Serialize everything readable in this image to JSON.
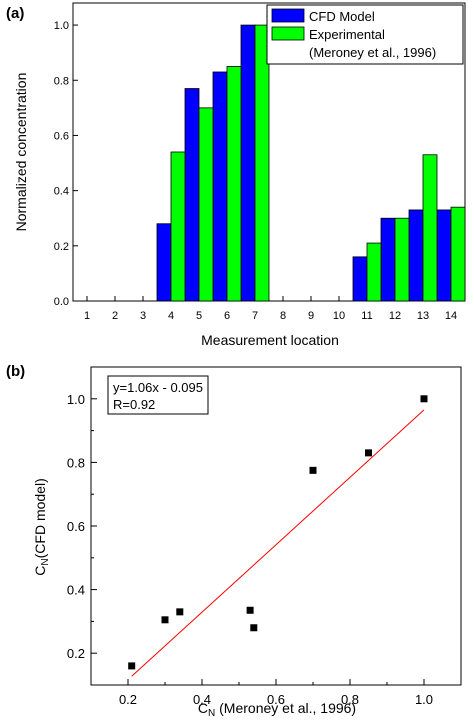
{
  "chart_data": [
    {
      "type": "bar",
      "panel_label": "(a)",
      "xlabel": "Measurement  location",
      "ylabel": "Normalized  concentration",
      "ylim": [
        0,
        1.08
      ],
      "yticks": [
        "0.0",
        "0.2",
        "0.4",
        "0.6",
        "0.8",
        "1.0"
      ],
      "categories": [
        "1",
        "2",
        "3",
        "4",
        "5",
        "6",
        "7",
        "8",
        "9",
        "10",
        "11",
        "12",
        "13",
        "14"
      ],
      "series": [
        {
          "name": "CFD Model",
          "color": "#0000ff",
          "values": [
            null,
            null,
            null,
            0.28,
            0.77,
            0.83,
            1.0,
            null,
            null,
            null,
            0.16,
            0.3,
            0.33,
            0.33
          ]
        },
        {
          "name": "Experimental",
          "color": "#00ff00",
          "values": [
            null,
            null,
            null,
            0.54,
            0.7,
            0.85,
            1.0,
            null,
            null,
            null,
            0.21,
            0.3,
            0.53,
            0.34
          ]
        }
      ],
      "legend_note": "(Meroney et al., 1996)",
      "legend_position": "top-right"
    },
    {
      "type": "scatter",
      "panel_label": "(b)",
      "xlabel_main": "C",
      "xlabel_sub": "N",
      "xlabel_rest": " (Meroney et al., 1996)",
      "ylabel_main": "C",
      "ylabel_sub": "N",
      "ylabel_rest": "(CFD model)",
      "xlim": [
        0.1,
        1.1
      ],
      "ylim": [
        0.1,
        1.1
      ],
      "xticks": [
        "0.2",
        "0.4",
        "0.6",
        "0.8",
        "1.0"
      ],
      "yticks": [
        "0.2",
        "0.4",
        "0.6",
        "0.8",
        "1.0"
      ],
      "points": [
        [
          0.21,
          0.16
        ],
        [
          0.3,
          0.305
        ],
        [
          0.34,
          0.33
        ],
        [
          0.53,
          0.335
        ],
        [
          0.54,
          0.28
        ],
        [
          0.7,
          0.775
        ],
        [
          0.85,
          0.83
        ],
        [
          1.0,
          1.0
        ]
      ],
      "fit": {
        "slope": 1.06,
        "intercept": -0.095,
        "x_range": [
          0.21,
          1.0
        ],
        "color": "#ff0000"
      },
      "annotation": [
        "y=1.06x - 0.095",
        "R=0.92"
      ],
      "annotation_position": "top-left"
    }
  ]
}
